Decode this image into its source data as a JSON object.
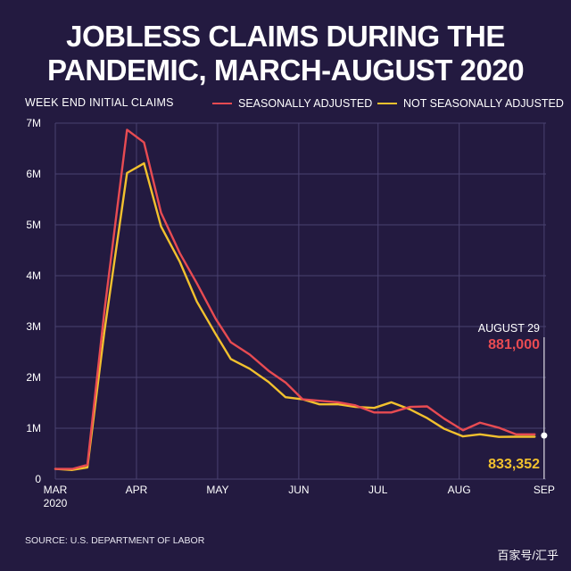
{
  "title": {
    "line1": "JOBLESS CLAIMS DURING THE",
    "line2": "PANDEMIC, MARCH-AUGUST 2020"
  },
  "colors": {
    "background": "#231a40",
    "seasonally_adjusted": "#e84b52",
    "not_seasonally_adjusted": "#f2c12e",
    "grid": "#4a4270",
    "text": "#ffffff"
  },
  "source": "SOURCE:  U.S. DEPARTMENT OF LABOR",
  "watermark": "百家号/汇乎",
  "chart_data": {
    "type": "line",
    "title": "JOBLESS CLAIMS DURING THE PANDEMIC, MARCH-AUGUST 2020",
    "ylabel": "WEEK END INITIAL CLAIMS",
    "xlabel": "",
    "ylim": [
      0,
      7000000
    ],
    "yticks": [
      {
        "value": 0,
        "label": "0"
      },
      {
        "value": 1000000,
        "label": "1M"
      },
      {
        "value": 2000000,
        "label": "2M"
      },
      {
        "value": 3000000,
        "label": "3M"
      },
      {
        "value": 4000000,
        "label": "4M"
      },
      {
        "value": 5000000,
        "label": "5M"
      },
      {
        "value": 6000000,
        "label": "6M"
      },
      {
        "value": 7000000,
        "label": "7M"
      }
    ],
    "xlim": [
      0,
      26
    ],
    "xticks": [
      {
        "week": 0,
        "label": "MAR",
        "sublabel": "2020"
      },
      {
        "week": 4.3,
        "label": "APR",
        "sublabel": ""
      },
      {
        "week": 8.6,
        "label": "MAY",
        "sublabel": ""
      },
      {
        "week": 12.9,
        "label": "JUN",
        "sublabel": ""
      },
      {
        "week": 17.1,
        "label": "JUL",
        "sublabel": ""
      },
      {
        "week": 21.4,
        "label": "AUG",
        "sublabel": ""
      },
      {
        "week": 25.9,
        "label": "SEP",
        "sublabel": ""
      }
    ],
    "week_x": [
      0,
      0.9,
      1.7,
      2.6,
      3.8,
      4.7,
      5.6,
      6.6,
      7.5,
      8.5,
      9.3,
      10.3,
      11.3,
      12.2,
      13.1,
      14.0,
      15.0,
      15.9,
      16.9,
      17.8,
      18.8,
      19.7,
      20.6,
      21.6,
      22.5,
      23.5,
      24.4,
      25.4
    ],
    "series": [
      {
        "name": "SEASONALLY ADJUSTED",
        "color": "#e84b52",
        "values": [
          200000,
          200000,
          280000,
          3300000,
          6870000,
          6620000,
          5240000,
          4440000,
          3850000,
          3150000,
          2690000,
          2450000,
          2130000,
          1900000,
          1570000,
          1540000,
          1510000,
          1450000,
          1310000,
          1310000,
          1420000,
          1430000,
          1190000,
          960000,
          1110000,
          1010000,
          881000,
          881000
        ]
      },
      {
        "name": "NOT SEASONALLY ADJUSTED",
        "color": "#f2c12e",
        "values": [
          200000,
          180000,
          230000,
          2900000,
          6020000,
          6210000,
          4970000,
          4270000,
          3490000,
          2850000,
          2360000,
          2170000,
          1910000,
          1610000,
          1570000,
          1470000,
          1470000,
          1420000,
          1400000,
          1510000,
          1370000,
          1200000,
          990000,
          840000,
          880000,
          830000,
          833352,
          833352
        ]
      }
    ],
    "annotation": {
      "date": "AUGUST 29",
      "seasonally_adjusted": "881,000",
      "not_seasonally_adjusted": "833,352",
      "week": 25.9,
      "value_sa": 881000,
      "value_nsa": 833352
    },
    "legend_position": "top-right",
    "grid": true
  }
}
